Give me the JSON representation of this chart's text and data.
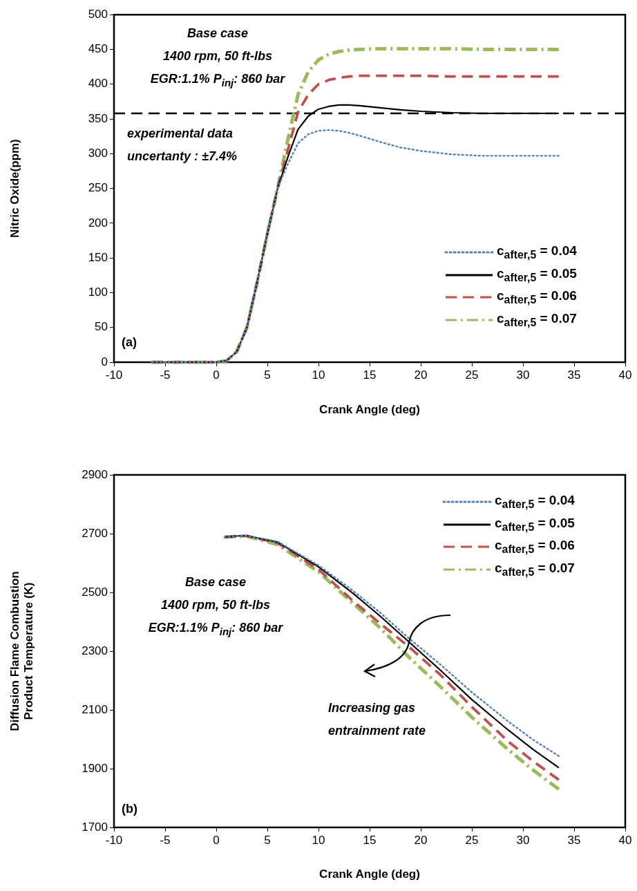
{
  "chart_data": [
    {
      "type": "line",
      "xlabel": "Crank Angle (deg)",
      "ylabel": "Nitric Oxide(ppm)",
      "xlim": [
        -10,
        40
      ],
      "xticks": [
        -10,
        -5,
        0,
        5,
        10,
        15,
        20,
        25,
        30,
        35,
        40
      ],
      "ylim": [
        0,
        500
      ],
      "yticks": [
        0,
        50,
        100,
        150,
        200,
        250,
        300,
        350,
        400,
        450,
        500
      ],
      "grid": false,
      "legend": "bottom right",
      "marker": "none",
      "x": [
        -6.3,
        -3,
        0,
        1,
        2,
        3,
        4,
        5,
        6,
        7,
        8,
        9,
        10,
        11,
        12,
        13,
        14,
        16,
        18,
        20,
        23,
        26,
        30,
        33.5
      ],
      "series": [
        {
          "name": "c$_{after,5}$ = 0.04",
          "color": "#4f81bd",
          "line_style": "dotted",
          "values": [
            0,
            0,
            0,
            2,
            15,
            50,
            115,
            185,
            250,
            285,
            315,
            328,
            333,
            334,
            333,
            330,
            326,
            317,
            309,
            304,
            299,
            297,
            297,
            297
          ]
        },
        {
          "name": "c$_{after,5}$ = 0.05",
          "color": "#000000",
          "line_style": "solid",
          "values": [
            0,
            0,
            0,
            2,
            15,
            50,
            115,
            185,
            250,
            295,
            335,
            354,
            364,
            368,
            370,
            370,
            369,
            366,
            363,
            361,
            359,
            358,
            358,
            358
          ]
        },
        {
          "name": "c$_{after,5}$ = 0.06",
          "color": "#c0504d",
          "line_style": "dashed",
          "values": [
            0,
            0,
            0,
            2,
            15,
            50,
            115,
            185,
            250,
            305,
            360,
            385,
            400,
            406,
            409,
            411,
            412,
            412,
            412,
            412,
            411,
            411,
            411,
            411
          ]
        },
        {
          "name": "c$_{after,5}$ = 0.07",
          "color": "#9bbb59",
          "line_style": "dashdot",
          "values": [
            0,
            0,
            0,
            2,
            15,
            50,
            115,
            185,
            250,
            320,
            385,
            418,
            435,
            443,
            447,
            449,
            450,
            451,
            451,
            451,
            451,
            450,
            450,
            450
          ]
        }
      ],
      "ref_lines": [
        {
          "axis": "y",
          "value": 358,
          "color": "#000000",
          "line_style": "dashed"
        }
      ],
      "annotations": [
        "Base case\n1400 rpm, 50 ft-lbs\nEGR:1.1% P$_{inj}$: 860 bar",
        "experimental data\nuncertanty : ±7.4%",
        "(a)"
      ]
    },
    {
      "type": "line",
      "xlabel": "Crank Angle (deg)",
      "ylabel": "Diffusion Flame Combustion Product Temperature (K)",
      "xlim": [
        -10,
        40
      ],
      "xticks": [
        -10,
        -5,
        0,
        5,
        10,
        15,
        20,
        25,
        30,
        35,
        40
      ],
      "ylim": [
        1700,
        2900
      ],
      "yticks": [
        1700,
        1900,
        2100,
        2300,
        2500,
        2700,
        2900
      ],
      "grid": false,
      "legend": "top right",
      "marker": "none",
      "x": [
        0.8,
        2,
        3,
        6,
        10,
        13.4,
        16,
        18.8,
        21.9,
        25,
        28.5,
        31,
        33.5
      ],
      "series": [
        {
          "name": "c$_{after,5}$ = 0.04",
          "color": "#4f81bd",
          "line_style": "dotted",
          "values": [
            2688,
            2692,
            2693,
            2673,
            2592,
            2505,
            2432,
            2345,
            2255,
            2160,
            2062,
            1998,
            1943
          ]
        },
        {
          "name": "c$_{after,5}$ = 0.05",
          "color": "#000000",
          "line_style": "solid",
          "values": [
            2688,
            2692,
            2693,
            2671,
            2587,
            2496,
            2420,
            2333,
            2236,
            2135,
            2033,
            1965,
            1903
          ]
        },
        {
          "name": "c$_{after,5}$ = 0.06",
          "color": "#c0504d",
          "line_style": "dashed",
          "values": [
            2688,
            2692,
            2692,
            2668,
            2578,
            2470,
            2395,
            2316,
            2220,
            2110,
            1994,
            1925,
            1862
          ]
        },
        {
          "name": "c$_{after,5}$ = 0.07",
          "color": "#9bbb59",
          "line_style": "dashdot",
          "values": [
            2688,
            2690,
            2691,
            2663,
            2570,
            2462,
            2380,
            2281,
            2180,
            2075,
            1966,
            1895,
            1830
          ]
        }
      ],
      "annotations": [
        "Base case\n1400 rpm, 50 ft-lbs\nEGR:1.1% P$_{inj}$: 860 bar",
        "Increasing gas\nentrainment rate",
        "(b)"
      ]
    }
  ]
}
